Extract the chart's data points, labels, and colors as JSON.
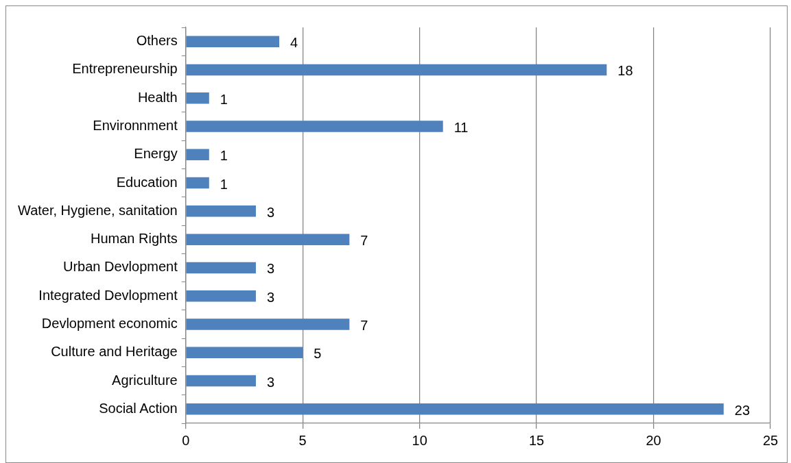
{
  "chart_data": {
    "type": "bar",
    "orientation": "horizontal",
    "categories": [
      "Others",
      "Entrepreneurship",
      "Health",
      "Environnment",
      "Energy",
      "Education",
      "Water, Hygiene, sanitation",
      "Human Rights",
      "Urban Devlopment",
      "Integrated Devlopment",
      "Devlopment economic",
      "Culture and Heritage",
      "Agriculture",
      "Social Action"
    ],
    "values": [
      4,
      18,
      1,
      11,
      1,
      1,
      3,
      7,
      3,
      3,
      7,
      5,
      3,
      23
    ],
    "color": "#4f81bd",
    "xlim": [
      0,
      25
    ],
    "xticks": [
      0,
      5,
      10,
      15,
      20,
      25
    ],
    "grid": "x",
    "data_labels": true,
    "legend": false
  }
}
